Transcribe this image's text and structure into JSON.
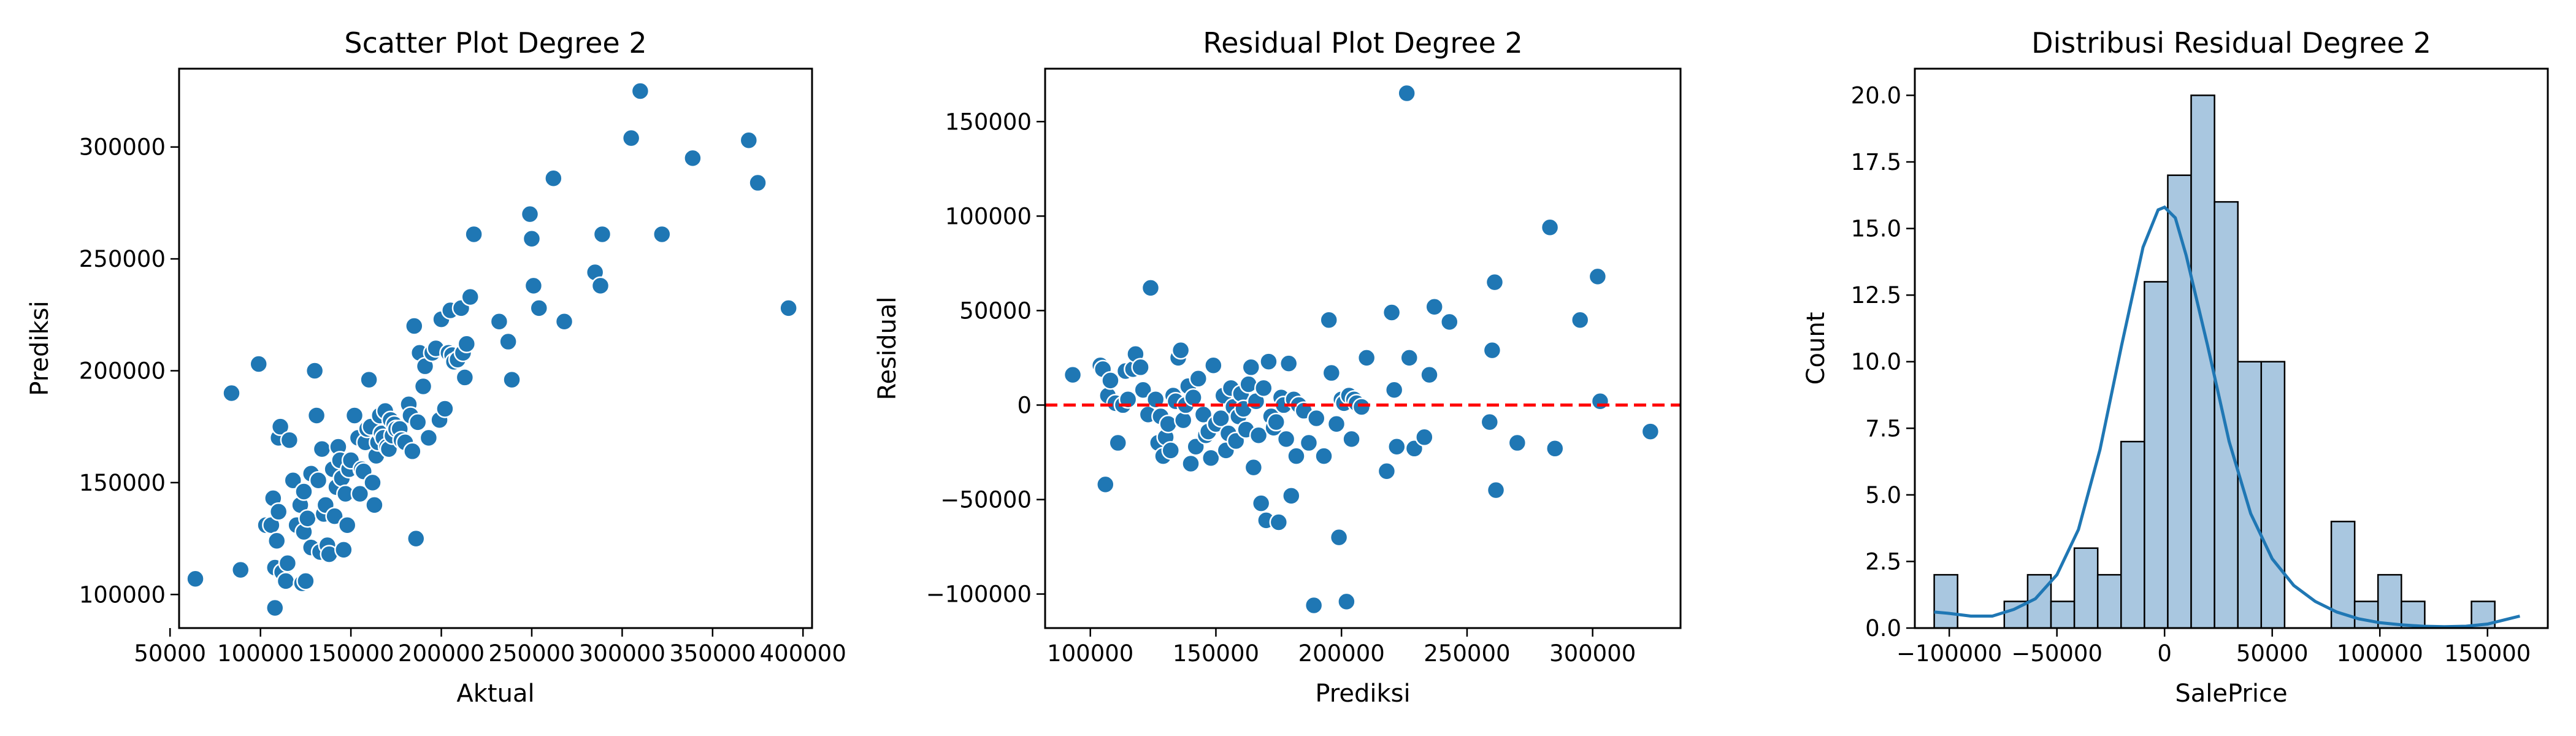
{
  "colors": {
    "point": "#1f77b4",
    "point_edge": "#ffffff",
    "zero_line": "#ff0000",
    "hist_fill": "#a9c7e0",
    "hist_edge": "#000000",
    "kde": "#1f77b4"
  },
  "chart_data": [
    {
      "type": "scatter",
      "title": "Scatter Plot Degree 2",
      "xlabel": "Aktual",
      "ylabel": "Prediksi",
      "xlim": [
        55000,
        405000
      ],
      "ylim": [
        85000,
        335000
      ],
      "xticks": [
        50000,
        100000,
        150000,
        200000,
        250000,
        300000,
        350000,
        400000
      ],
      "xtick_labels": [
        "50000",
        "100000",
        "150000",
        "200000",
        "250000",
        "300000",
        "350000",
        "400000"
      ],
      "yticks": [
        100000,
        150000,
        200000,
        250000,
        300000
      ],
      "ytick_labels": [
        "100000",
        "150000",
        "200000",
        "250000",
        "300000"
      ],
      "points": [
        [
          64000,
          107000
        ],
        [
          84000,
          190000
        ],
        [
          89000,
          111000
        ],
        [
          99000,
          203000
        ],
        [
          103000,
          131000
        ],
        [
          106000,
          131000
        ],
        [
          107000,
          143000
        ],
        [
          108000,
          112000
        ],
        [
          108000,
          94000
        ],
        [
          109000,
          124000
        ],
        [
          110000,
          137000
        ],
        [
          110000,
          170000
        ],
        [
          111000,
          175000
        ],
        [
          112000,
          110000
        ],
        [
          114000,
          106000
        ],
        [
          115000,
          114000
        ],
        [
          116000,
          169000
        ],
        [
          118000,
          151000
        ],
        [
          120000,
          131000
        ],
        [
          122000,
          140000
        ],
        [
          123000,
          105000
        ],
        [
          124000,
          128000
        ],
        [
          124000,
          146000
        ],
        [
          125000,
          106000
        ],
        [
          126000,
          134000
        ],
        [
          128000,
          121000
        ],
        [
          128000,
          154000
        ],
        [
          130000,
          200000
        ],
        [
          131000,
          180000
        ],
        [
          132000,
          151000
        ],
        [
          133000,
          119000
        ],
        [
          134000,
          165000
        ],
        [
          135000,
          136000
        ],
        [
          136000,
          140000
        ],
        [
          137000,
          122000
        ],
        [
          138000,
          118000
        ],
        [
          140000,
          156000
        ],
        [
          141000,
          135000
        ],
        [
          142000,
          148000
        ],
        [
          143000,
          166000
        ],
        [
          144000,
          160000
        ],
        [
          145000,
          152000
        ],
        [
          146000,
          120000
        ],
        [
          147000,
          145000
        ],
        [
          148000,
          131000
        ],
        [
          149000,
          156000
        ],
        [
          150000,
          160000
        ],
        [
          152000,
          180000
        ],
        [
          154000,
          170000
        ],
        [
          155000,
          145000
        ],
        [
          156000,
          156000
        ],
        [
          157000,
          155000
        ],
        [
          158000,
          168000
        ],
        [
          159000,
          174000
        ],
        [
          160000,
          196000
        ],
        [
          161000,
          175000
        ],
        [
          162000,
          150000
        ],
        [
          163000,
          140000
        ],
        [
          164000,
          162000
        ],
        [
          165000,
          168000
        ],
        [
          166000,
          180000
        ],
        [
          167000,
          172000
        ],
        [
          168000,
          170000
        ],
        [
          169000,
          182000
        ],
        [
          170000,
          166000
        ],
        [
          171000,
          165000
        ],
        [
          172000,
          178000
        ],
        [
          173000,
          171000
        ],
        [
          174000,
          176000
        ],
        [
          175000,
          174000
        ],
        [
          177000,
          174000
        ],
        [
          178000,
          169000
        ],
        [
          180000,
          168000
        ],
        [
          182000,
          185000
        ],
        [
          183000,
          180000
        ],
        [
          184000,
          164000
        ],
        [
          185000,
          220000
        ],
        [
          186000,
          125000
        ],
        [
          187000,
          177000
        ],
        [
          188000,
          208000
        ],
        [
          190000,
          193000
        ],
        [
          191000,
          202000
        ],
        [
          193000,
          170000
        ],
        [
          195000,
          208000
        ],
        [
          197000,
          210000
        ],
        [
          199000,
          178000
        ],
        [
          200000,
          223000
        ],
        [
          202000,
          183000
        ],
        [
          204000,
          208000
        ],
        [
          205000,
          227000
        ],
        [
          206000,
          207000
        ],
        [
          207000,
          204000
        ],
        [
          209000,
          205000
        ],
        [
          211000,
          228000
        ],
        [
          212000,
          208000
        ],
        [
          213000,
          197000
        ],
        [
          214000,
          212000
        ],
        [
          216000,
          233000
        ],
        [
          218000,
          261000
        ],
        [
          232000,
          222000
        ],
        [
          237000,
          213000
        ],
        [
          239000,
          196000
        ],
        [
          249000,
          270000
        ],
        [
          250000,
          259000
        ],
        [
          251000,
          238000
        ],
        [
          254000,
          228000
        ],
        [
          262000,
          286000
        ],
        [
          268000,
          222000
        ],
        [
          285000,
          244000
        ],
        [
          288000,
          238000
        ],
        [
          289000,
          261000
        ],
        [
          305000,
          304000
        ],
        [
          310000,
          325000
        ],
        [
          322000,
          261000
        ],
        [
          339000,
          295000
        ],
        [
          370000,
          303000
        ],
        [
          375000,
          284000
        ],
        [
          392000,
          228000
        ]
      ]
    },
    {
      "type": "scatter",
      "title": "Residual Plot Degree 2",
      "xlabel": "Prediksi",
      "ylabel": "Residual",
      "xlim": [
        82000,
        335000
      ],
      "ylim": [
        -118000,
        178000
      ],
      "xticks": [
        100000,
        150000,
        200000,
        250000,
        300000
      ],
      "xtick_labels": [
        "100000",
        "150000",
        "200000",
        "250000",
        "300000"
      ],
      "yticks": [
        -100000,
        -50000,
        0,
        50000,
        100000,
        150000
      ],
      "ytick_labels": [
        "−100000",
        "−50000",
        "0",
        "50000",
        "100000",
        "150000"
      ],
      "reference_line": 0,
      "points": [
        [
          93000,
          16000
        ],
        [
          104000,
          21000
        ],
        [
          105000,
          19000
        ],
        [
          106000,
          -42000
        ],
        [
          107000,
          5000
        ],
        [
          108000,
          13000
        ],
        [
          110000,
          1000
        ],
        [
          111000,
          -20000
        ],
        [
          113000,
          0
        ],
        [
          114000,
          18000
        ],
        [
          115000,
          3000
        ],
        [
          117000,
          19000
        ],
        [
          118000,
          27000
        ],
        [
          120000,
          20000
        ],
        [
          121000,
          8000
        ],
        [
          123000,
          -5000
        ],
        [
          124000,
          62000
        ],
        [
          126000,
          3000
        ],
        [
          127000,
          -20000
        ],
        [
          128000,
          -6000
        ],
        [
          129000,
          -27000
        ],
        [
          130000,
          -17000
        ],
        [
          131000,
          -10000
        ],
        [
          132000,
          -24000
        ],
        [
          133000,
          5000
        ],
        [
          134000,
          2000
        ],
        [
          135000,
          25000
        ],
        [
          136000,
          29000
        ],
        [
          137000,
          -8000
        ],
        [
          138000,
          0
        ],
        [
          139000,
          10000
        ],
        [
          140000,
          -31000
        ],
        [
          141000,
          4000
        ],
        [
          142000,
          -22000
        ],
        [
          143000,
          14000
        ],
        [
          145000,
          -5000
        ],
        [
          146000,
          -16000
        ],
        [
          147000,
          -14000
        ],
        [
          148000,
          -28000
        ],
        [
          149000,
          21000
        ],
        [
          150000,
          -10000
        ],
        [
          152000,
          -7000
        ],
        [
          153000,
          5000
        ],
        [
          154000,
          -24000
        ],
        [
          155000,
          -15000
        ],
        [
          156000,
          9000
        ],
        [
          157000,
          -1000
        ],
        [
          158000,
          -19000
        ],
        [
          159000,
          -6000
        ],
        [
          160000,
          6000
        ],
        [
          161000,
          -2000
        ],
        [
          162000,
          -13000
        ],
        [
          163000,
          11000
        ],
        [
          164000,
          20000
        ],
        [
          165000,
          -33000
        ],
        [
          166000,
          2000
        ],
        [
          167000,
          -16000
        ],
        [
          168000,
          -52000
        ],
        [
          169000,
          9000
        ],
        [
          170000,
          -61000
        ],
        [
          171000,
          23000
        ],
        [
          172000,
          -6000
        ],
        [
          173000,
          -12000
        ],
        [
          174000,
          -9000
        ],
        [
          175000,
          -62000
        ],
        [
          176000,
          4000
        ],
        [
          177000,
          0
        ],
        [
          178000,
          -18000
        ],
        [
          179000,
          22000
        ],
        [
          180000,
          -48000
        ],
        [
          181000,
          3000
        ],
        [
          182000,
          -27000
        ],
        [
          183000,
          0
        ],
        [
          185000,
          -3000
        ],
        [
          187000,
          -20000
        ],
        [
          189000,
          -106000
        ],
        [
          190000,
          -7000
        ],
        [
          193000,
          -27000
        ],
        [
          195000,
          45000
        ],
        [
          196000,
          17000
        ],
        [
          198000,
          -10000
        ],
        [
          199000,
          -70000
        ],
        [
          200000,
          3000
        ],
        [
          201000,
          1000
        ],
        [
          202000,
          -104000
        ],
        [
          203000,
          5000
        ],
        [
          204000,
          -18000
        ],
        [
          205000,
          3000
        ],
        [
          206000,
          1000
        ],
        [
          208000,
          -1000
        ],
        [
          210000,
          25000
        ],
        [
          218000,
          -35000
        ],
        [
          220000,
          49000
        ],
        [
          221000,
          8000
        ],
        [
          222000,
          -22000
        ],
        [
          226000,
          165000
        ],
        [
          227000,
          25000
        ],
        [
          229000,
          -23000
        ],
        [
          233000,
          -17000
        ],
        [
          235000,
          16000
        ],
        [
          237000,
          52000
        ],
        [
          243000,
          44000
        ],
        [
          259000,
          -9000
        ],
        [
          260000,
          29000
        ],
        [
          261000,
          65000
        ],
        [
          261500,
          -45000
        ],
        [
          270000,
          -20000
        ],
        [
          283000,
          94000
        ],
        [
          285000,
          -23000
        ],
        [
          295000,
          45000
        ],
        [
          302000,
          68000
        ],
        [
          303000,
          2000
        ],
        [
          323000,
          -14000
        ]
      ]
    },
    {
      "type": "histogram",
      "title": "Distribusi Residual Degree 2",
      "xlabel": "SalePrice",
      "ylabel": "Count",
      "xlim": [
        -116000,
        178000
      ],
      "ylim": [
        0,
        21
      ],
      "xticks": [
        -100000,
        -50000,
        0,
        50000,
        100000,
        150000
      ],
      "xtick_labels": [
        "−100000",
        "−50000",
        "0",
        "50000",
        "100000",
        "150000"
      ],
      "yticks": [
        0,
        2.5,
        5,
        7.5,
        10,
        12.5,
        15,
        17.5,
        20
      ],
      "ytick_labels": [
        "0.0",
        "2.5",
        "5.0",
        "7.5",
        "10.0",
        "12.5",
        "15.0",
        "17.5",
        "20.0"
      ],
      "bin_start": -107000,
      "bin_width": 10850,
      "counts": [
        2,
        0,
        0,
        1,
        2,
        1,
        3,
        2,
        7,
        13,
        17,
        20,
        16,
        10,
        10,
        0,
        0,
        4,
        1,
        2,
        1,
        0,
        0,
        1,
        0,
        0,
        0,
        0,
        0,
        1
      ],
      "kde": [
        [
          -107000,
          0.6
        ],
        [
          -100000,
          0.55
        ],
        [
          -90000,
          0.45
        ],
        [
          -80000,
          0.45
        ],
        [
          -70000,
          0.7
        ],
        [
          -60000,
          1.1
        ],
        [
          -50000,
          2.0
        ],
        [
          -40000,
          3.7
        ],
        [
          -30000,
          6.7
        ],
        [
          -20000,
          10.6
        ],
        [
          -10000,
          14.3
        ],
        [
          -3000,
          15.7
        ],
        [
          0,
          15.8
        ],
        [
          5000,
          15.4
        ],
        [
          10000,
          14.0
        ],
        [
          20000,
          10.6
        ],
        [
          30000,
          7.0
        ],
        [
          40000,
          4.3
        ],
        [
          50000,
          2.6
        ],
        [
          60000,
          1.6
        ],
        [
          70000,
          1.0
        ],
        [
          80000,
          0.6
        ],
        [
          90000,
          0.35
        ],
        [
          100000,
          0.2
        ],
        [
          110000,
          0.12
        ],
        [
          120000,
          0.07
        ],
        [
          130000,
          0.05
        ],
        [
          140000,
          0.07
        ],
        [
          150000,
          0.15
        ],
        [
          160000,
          0.35
        ],
        [
          165000,
          0.45
        ]
      ]
    }
  ]
}
